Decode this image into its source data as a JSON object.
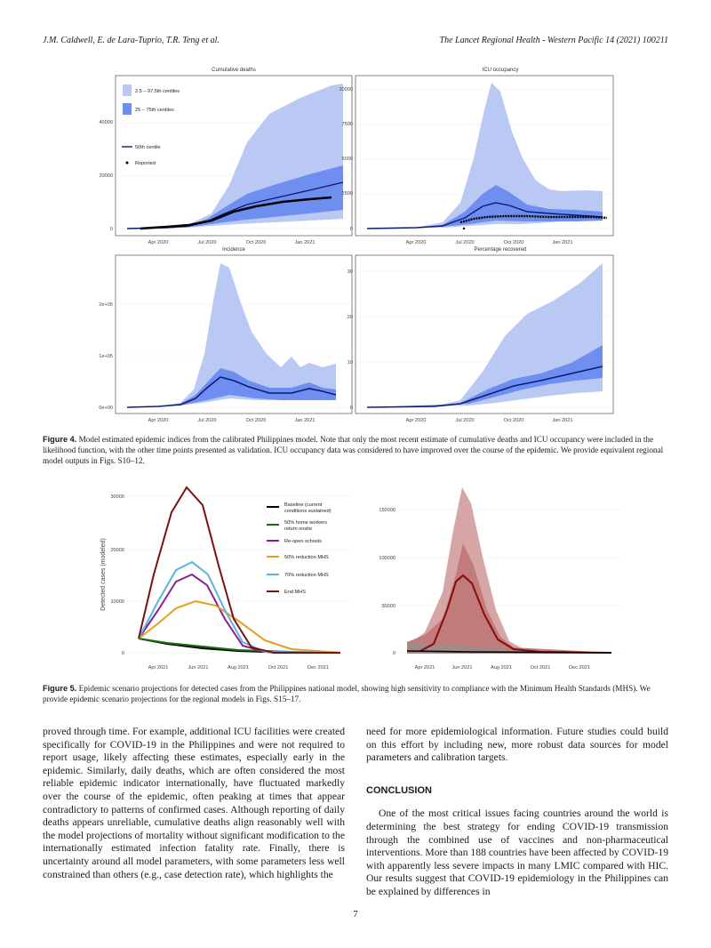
{
  "header": {
    "authors": "J.M. Caldwell, E. de Lara-Tuprio, T.R. Teng et al.",
    "journal": "The Lancet Regional Health - Western Pacific 14 (2021) 100211"
  },
  "figure4": {
    "panels": [
      {
        "title": "Cumulative deaths"
      },
      {
        "title": "ICU occupancy"
      },
      {
        "title": "Incidence"
      },
      {
        "title": "Percentage recovered"
      }
    ],
    "legend": {
      "outer": "2.5 – 97.5th centiles",
      "inner": "25 – 75th centiles",
      "median": "50th centile",
      "reported": "Reported"
    },
    "x_ticks": [
      "Apr 2020",
      "Jul 2020",
      "Oct 2020",
      "Jan 2021"
    ],
    "caption_label": "Figure 4.",
    "caption_text": "Model estimated epidemic indices from the calibrated Philippines model. Note that only the most recent estimate of cumulative deaths and ICU occupancy were included in the likelihood function, with the other time points presented as validation. ICU occupancy data was considered to have improved over the course of the epidemic. We provide equivalent regional model outputs in Figs. S10–12.",
    "colors": {
      "outer": "#b4c6f3",
      "inner": "#6f8ff0",
      "median": "#0b1a78"
    }
  },
  "figure5": {
    "ylabel": "Detected cases (modeled)",
    "x_ticks": [
      "Apr 2021",
      "Jun 2021",
      "Aug 2021",
      "Oct 2021",
      "Dec 2021"
    ],
    "legend": [
      {
        "label1": "Baseline (current",
        "label2": "conditions sustained)",
        "color": "#000000"
      },
      {
        "label1": "50% home workers",
        "label2": "return onsite",
        "color": "#1e6b14"
      },
      {
        "label1": "Re-open schools",
        "label2": "",
        "color": "#8a1e98"
      },
      {
        "label1": "50% reduction MHS",
        "label2": "",
        "color": "#e69c24"
      },
      {
        "label1": "70% reduction MHS",
        "label2": "",
        "color": "#58b4e0"
      },
      {
        "label1": "End MHS",
        "label2": "",
        "color": "#7d0f0f"
      }
    ],
    "caption_label": "Figure 5.",
    "caption_text": "Epidemic scenario projections for detected cases from the Philippines national model, showing high sensitivity to compliance with the Minimum Health Standards (MHS). We provide epidemic scenario projections for the regional models in Figs. S15–17."
  },
  "chart_data": [
    {
      "type": "area",
      "title": "Cumulative deaths",
      "x": [
        "Apr 2020",
        "Jul 2020",
        "Oct 2020",
        "Jan 2021"
      ],
      "y_ticks": [
        0,
        20000,
        40000
      ],
      "series": [
        {
          "name": "50th centile",
          "values": [
            200,
            2500,
            9000,
            15000
          ]
        },
        {
          "name": "Reported",
          "values": [
            200,
            2200,
            7500,
            11500
          ]
        }
      ]
    },
    {
      "type": "area",
      "title": "ICU occupancy",
      "x": [
        "Apr 2020",
        "Jul 2020",
        "Oct 2020",
        "Jan 2021"
      ],
      "y_ticks": [
        0,
        2500,
        5000,
        7500,
        10000
      ],
      "series": [
        {
          "name": "50th centile",
          "values": [
            20,
            700,
            1500,
            850
          ]
        },
        {
          "name": "Reported",
          "values": [
            20,
            600,
            800,
            800
          ]
        }
      ]
    },
    {
      "type": "area",
      "title": "Incidence",
      "x": [
        "Apr 2020",
        "Jul 2020",
        "Oct 2020",
        "Jan 2021"
      ],
      "y_ticks": [
        "0e+00",
        "1e+05",
        "2e+05"
      ],
      "series": [
        {
          "name": "50th centile",
          "values": [
            1000,
            25000,
            35000,
            30000
          ]
        }
      ]
    },
    {
      "type": "area",
      "title": "Percentage recovered",
      "x": [
        "Apr 2020",
        "Jul 2020",
        "Oct 2020",
        "Jan 2021"
      ],
      "y_ticks": [
        0,
        10,
        20,
        30
      ],
      "series": [
        {
          "name": "50th centile",
          "values": [
            0,
            0.5,
            4.5,
            7.5
          ]
        }
      ]
    },
    {
      "type": "line",
      "ylabel": "Detected cases (modeled)",
      "x": [
        "Apr 2021",
        "Jun 2021",
        "Aug 2021",
        "Oct 2021",
        "Dec 2021"
      ],
      "y_ticks": [
        0,
        10000,
        20000,
        30000
      ],
      "series": [
        {
          "name": "Baseline (current conditions sustained)",
          "values": [
            2300,
            1300,
            600,
            250,
            100
          ]
        },
        {
          "name": "50% home workers return onsite",
          "values": [
            2400,
            1400,
            700,
            300,
            120
          ]
        },
        {
          "name": "Re-open schools",
          "values": [
            9000,
            14500,
            4000,
            400,
            50
          ]
        },
        {
          "name": "50% reduction MHS",
          "values": [
            6000,
            9800,
            6000,
            1800,
            400
          ]
        },
        {
          "name": "70% reduction MHS",
          "values": [
            10000,
            17000,
            5000,
            500,
            60
          ]
        },
        {
          "name": "End MHS",
          "values": [
            24000,
            27000,
            3000,
            200,
            20
          ]
        }
      ]
    },
    {
      "type": "area",
      "x": [
        "Apr 2021",
        "Jun 2021",
        "Aug 2021",
        "Oct 2021",
        "Dec 2021"
      ],
      "y_ticks": [
        0,
        50000,
        100000,
        150000
      ],
      "series": [
        {
          "name": "End MHS",
          "values": [
            10000,
            78000,
            12000,
            1000,
            100
          ]
        }
      ]
    }
  ],
  "body": {
    "left": "proved through time. For example, additional ICU facilities were created specifically for COVID-19 in the Philippines and were not required to report usage, likely affecting these estimates, especially early in the epidemic. Similarly, daily deaths, which are often considered the most reliable epidemic indicator internationally, have fluctuated markedly over the course of the epidemic, often peaking at times that appear contradictory to patterns of confirmed cases. Although reporting of daily deaths appears unreliable, cumulative deaths align reasonably well with the model projections of mortality without significant modification to the internationally estimated infection fatality rate. Finally, there is uncertainty around all model parameters, with some parameters less well constrained than others (e.g., case detection rate), which highlights the",
    "right_p1": "need for more epidemiological information. Future studies could build on this effort by including new, more robust data sources for model parameters and calibration targets.",
    "heading": "CONCLUSION",
    "right_p2": "One of the most critical issues facing countries around the world is determining the best strategy for ending COVID-19 transmission through the combined use of vaccines and non-pharmaceutical interventions. More than 188 countries have been affected by COVID-19 with apparently less severe impacts in many LMIC compared with HIC. Our results suggest that COVID-19 epidemiology in the Philippines can be explained by differences in"
  },
  "page_number": "7"
}
